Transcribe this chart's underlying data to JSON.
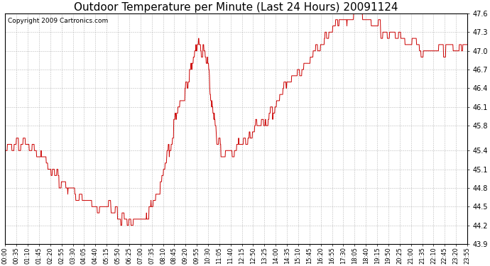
{
  "title": "Outdoor Temperature per Minute (Last 24 Hours) 20091124",
  "copyright_text": "Copyright 2009 Cartronics.com",
  "line_color": "#cc0000",
  "background_color": "#ffffff",
  "grid_color": "#bbbbbb",
  "ylim": [
    43.9,
    47.6
  ],
  "yticks": [
    43.9,
    44.2,
    44.5,
    44.8,
    45.1,
    45.4,
    45.8,
    46.1,
    46.4,
    46.7,
    47.0,
    47.3,
    47.6
  ],
  "title_fontsize": 11,
  "copyright_fontsize": 6.5,
  "x_tick_labels": [
    "00:00",
    "00:35",
    "01:10",
    "01:45",
    "02:20",
    "02:55",
    "03:30",
    "04:05",
    "04:40",
    "05:15",
    "05:50",
    "06:25",
    "07:00",
    "07:35",
    "08:10",
    "08:45",
    "09:20",
    "09:55",
    "10:30",
    "11:05",
    "11:40",
    "12:15",
    "12:50",
    "13:25",
    "14:00",
    "14:35",
    "15:10",
    "15:45",
    "16:20",
    "16:55",
    "17:30",
    "18:05",
    "18:40",
    "19:15",
    "19:50",
    "20:25",
    "21:00",
    "21:35",
    "22:10",
    "22:45",
    "23:20",
    "23:55"
  ],
  "key_x": [
    0,
    0.5,
    1.0,
    1.5,
    2.0,
    2.5,
    3.0,
    3.5,
    4.0,
    4.5,
    5.0,
    5.5,
    6.0,
    6.5,
    7.0,
    7.5,
    8.0,
    8.5,
    9.0,
    9.5,
    10.0,
    10.5,
    11.0,
    11.5,
    12.0,
    12.5,
    13.0,
    13.5,
    14.0,
    14.5,
    15.0,
    15.5,
    16.0,
    16.5,
    17.0,
    17.5,
    18.0,
    18.5,
    19.0,
    19.5,
    20.0,
    20.5,
    21.0,
    21.5,
    22.0,
    22.5,
    23.0,
    23.5,
    24.0
  ],
  "key_y": [
    45.5,
    45.5,
    45.5,
    45.4,
    45.2,
    45.0,
    44.9,
    44.8,
    44.65,
    44.55,
    44.5,
    44.45,
    44.35,
    44.2,
    44.25,
    44.4,
    44.8,
    45.4,
    46.1,
    46.45,
    47.2,
    46.8,
    45.5,
    45.35,
    45.4,
    45.6,
    45.75,
    45.85,
    46.1,
    46.4,
    46.6,
    46.75,
    46.9,
    47.1,
    47.35,
    47.5,
    47.6,
    47.55,
    47.45,
    47.35,
    47.3,
    47.2,
    47.1,
    47.05,
    47.0,
    47.05,
    47.1,
    47.0,
    47.1
  ]
}
